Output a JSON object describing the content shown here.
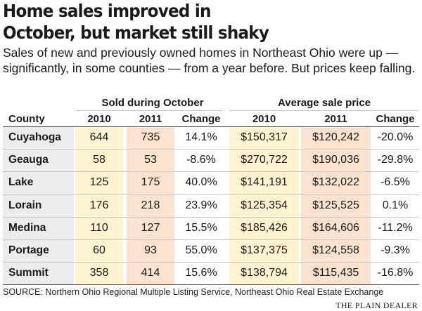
{
  "title_line1": "Home sales improved in",
  "title_line2": "October, but market still shaky",
  "subtitle": "Sales of new and previously owned homes in Northeast Ohio were up — significantly, in some counties — from a year before. But prices keep falling.",
  "groups": {
    "sold": "Sold during October",
    "price": "Average sale price"
  },
  "columns": {
    "county": "County",
    "y2010": "2010",
    "y2011": "2011",
    "change": "Change",
    "p2010": "2010",
    "p2011": "2011",
    "pchange": "Change"
  },
  "source": "SOURCE: Northern Ohio Regional Multiple Listing Service, Northeast Ohio Real Estate Exchange",
  "logo": "THE PLAIN DEALER",
  "colors": {
    "county_band": "#ececec",
    "band_2010": "#fff3d0",
    "band_2011": "#fbe3cf"
  },
  "chart_data": {
    "type": "table",
    "headers": [
      "County",
      "2010",
      "2011",
      "Change",
      "2010",
      "2011",
      "Change"
    ],
    "rows": [
      [
        "Cuyahoga",
        "644",
        "735",
        "14.1%",
        "$150,317",
        "$120,242",
        "-20.0%"
      ],
      [
        "Geauga",
        "58",
        "53",
        "-8.6%",
        "$270,722",
        "$190,036",
        "-29.8%"
      ],
      [
        "Lake",
        "125",
        "175",
        "40.0%",
        "$141,191",
        "$132,022",
        "-6.5%"
      ],
      [
        "Lorain",
        "176",
        "218",
        "23.9%",
        "$125,354",
        "$125,525",
        "0.1%"
      ],
      [
        "Medina",
        "110",
        "127",
        "15.5%",
        "$185,426",
        "$164,606",
        "-11.2%"
      ],
      [
        "Portage",
        "60",
        "93",
        "55.0%",
        "$137,375",
        "$124,558",
        "-9.3%"
      ],
      [
        "Summit",
        "358",
        "414",
        "15.6%",
        "$138,794",
        "$115,435",
        "-16.8%"
      ]
    ]
  }
}
